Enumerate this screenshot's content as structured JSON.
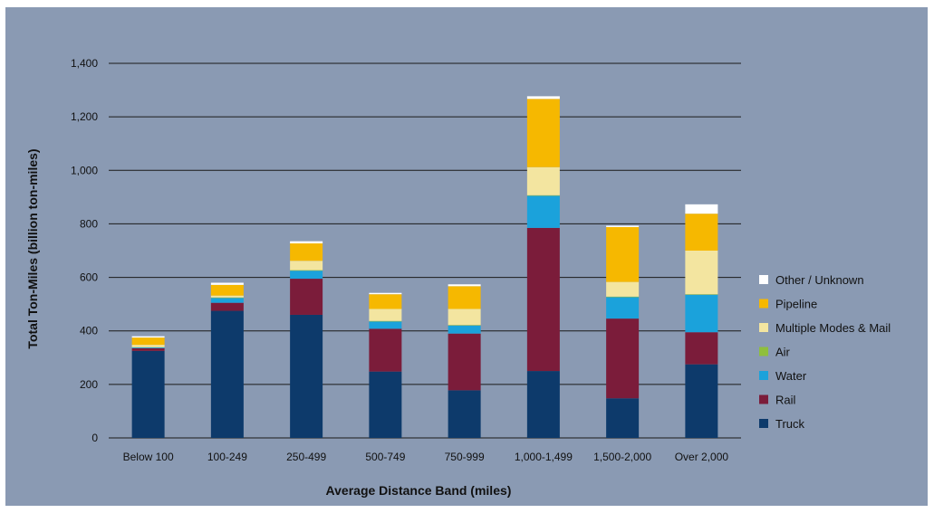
{
  "chart_data": {
    "type": "bar",
    "stacked": true,
    "xlabel": "Average Distance Band (miles)",
    "ylabel": "Total Ton-Miles (billion ton-miles)",
    "ylim": [
      0,
      1400
    ],
    "yticks": [
      0,
      200,
      400,
      600,
      800,
      1000,
      1200,
      1400
    ],
    "ytick_labels": [
      "0",
      "200",
      "400",
      "600",
      "800",
      "1,000",
      "1,200",
      "1,400"
    ],
    "grid": true,
    "legend_position": "right",
    "categories": [
      "Below 100",
      "100-249",
      "250-499",
      "500-749",
      "750-999",
      "1,000-1,499",
      "1,500-2,000",
      "Over 2,000"
    ],
    "series": [
      {
        "name": "Truck",
        "color": "#0d3a6b",
        "values": [
          325,
          475,
          460,
          248,
          178,
          250,
          148,
          275
        ]
      },
      {
        "name": "Rail",
        "color": "#7b1c3a",
        "values": [
          10,
          30,
          135,
          160,
          212,
          535,
          298,
          120
        ]
      },
      {
        "name": "Water",
        "color": "#1ba2db",
        "values": [
          3,
          18,
          30,
          27,
          30,
          120,
          80,
          140
        ]
      },
      {
        "name": "Air",
        "color": "#8fbf3c",
        "values": [
          1,
          2,
          2,
          2,
          2,
          2,
          2,
          2
        ]
      },
      {
        "name": "Multiple Modes & Mail",
        "color": "#f3e5a0",
        "values": [
          9,
          7,
          35,
          45,
          60,
          105,
          55,
          163
        ]
      },
      {
        "name": "Pipeline",
        "color": "#f6b800",
        "values": [
          27,
          40,
          65,
          55,
          85,
          255,
          205,
          138
        ]
      },
      {
        "name": "Other / Unknown",
        "color": "#ffffff",
        "values": [
          5,
          8,
          8,
          5,
          7,
          10,
          5,
          35
        ]
      }
    ]
  }
}
